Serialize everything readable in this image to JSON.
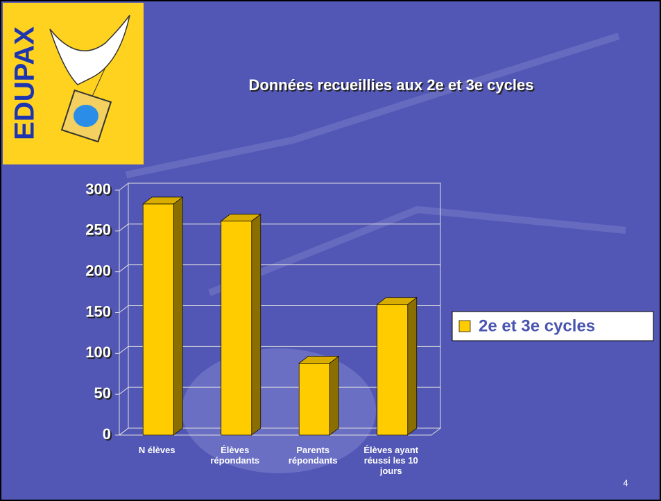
{
  "logo": "EDUPAX",
  "page_number": "4",
  "chart_data": {
    "type": "bar3d",
    "title": "Données recueillies aux 2e et 3e cycles",
    "categories": [
      "N élèves",
      "Élèves répondants",
      "Parents répondants",
      "Élèves ayant réussi les 10 jours"
    ],
    "series": [
      {
        "name": "2e et 3e cycles",
        "color": "#ffcc00",
        "values": [
          283,
          262,
          88,
          160
        ]
      }
    ],
    "ylim": [
      0,
      300
    ],
    "yticks": [
      0,
      50,
      100,
      150,
      200,
      250,
      300
    ],
    "grid": true,
    "legend": "right"
  }
}
